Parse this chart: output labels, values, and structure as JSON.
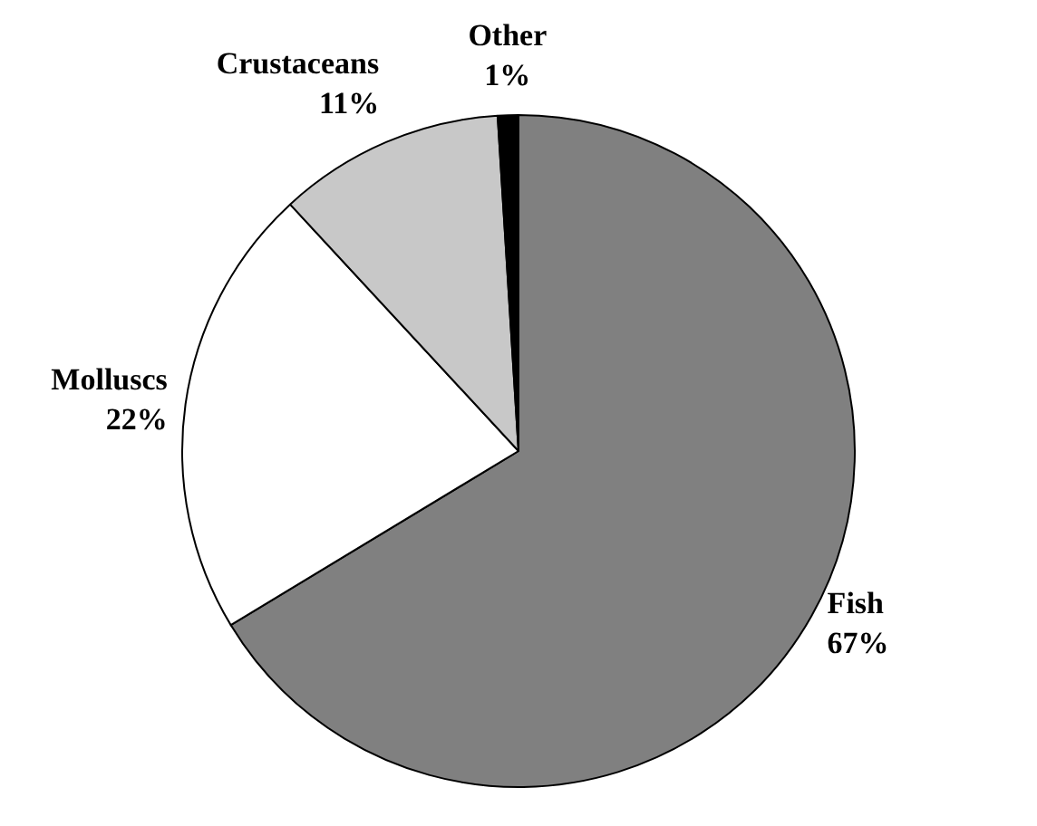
{
  "chart_data": {
    "type": "pie",
    "categories": [
      "Fish",
      "Molluscs",
      "Crustaceans",
      "Other"
    ],
    "values": [
      67,
      22,
      11,
      1
    ],
    "value_labels": [
      "67%",
      "22%",
      "11%",
      "1%"
    ],
    "colors": [
      "#808080",
      "#ffffff",
      "#c8c8c8",
      "#000000"
    ],
    "legend": false
  }
}
